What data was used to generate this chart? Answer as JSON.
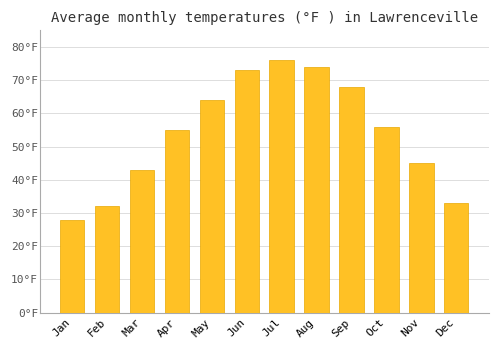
{
  "months": [
    "Jan",
    "Feb",
    "Mar",
    "Apr",
    "May",
    "Jun",
    "Jul",
    "Aug",
    "Sep",
    "Oct",
    "Nov",
    "Dec"
  ],
  "values": [
    28,
    32,
    43,
    55,
    64,
    73,
    76,
    74,
    68,
    56,
    45,
    33
  ],
  "bar_color": "#FFC125",
  "bar_edge_color": "#E8A800",
  "background_color": "#FFFFFF",
  "grid_color": "#DDDDDD",
  "title": "Average monthly temperatures (°F ) in Lawrenceville",
  "title_fontsize": 10,
  "tick_label_fontsize": 8,
  "ylim": [
    0,
    85
  ],
  "yticks": [
    0,
    10,
    20,
    30,
    40,
    50,
    60,
    70,
    80
  ]
}
